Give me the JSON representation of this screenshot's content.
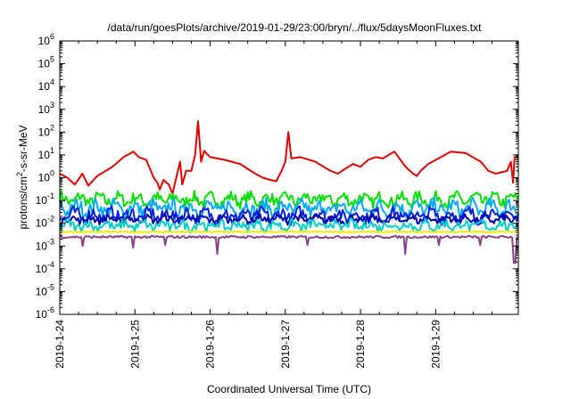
{
  "chart_data": {
    "type": "line",
    "title": "/data/run/goesPlots/archive/2019-01-29/23:00/bryn/../flux/5daysMoonFluxes.txt",
    "xlabel": "Coordinated Universal Time (UTC)",
    "ylabel": {
      "pre": "protons/cm",
      "sup": "2",
      "post": "-s-sr-MeV"
    },
    "yscale": "log",
    "ylim_exp": [
      -6,
      6
    ],
    "xlim_days": [
      0,
      6.1
    ],
    "y_ticks": [
      {
        "base": "10",
        "exp": "-6",
        "e": -6
      },
      {
        "base": "10",
        "exp": "-5",
        "e": -5
      },
      {
        "base": "10",
        "exp": "-4",
        "e": -4
      },
      {
        "base": "10",
        "exp": "-3",
        "e": -3
      },
      {
        "base": "10",
        "exp": "-2",
        "e": -2
      },
      {
        "base": "10",
        "exp": "-1",
        "e": -1
      },
      {
        "base": "10",
        "exp": "0",
        "e": 0
      },
      {
        "base": "10",
        "exp": "1",
        "e": 1
      },
      {
        "base": "10",
        "exp": "2",
        "e": 2
      },
      {
        "base": "10",
        "exp": "3",
        "e": 3
      },
      {
        "base": "10",
        "exp": "4",
        "e": 4
      },
      {
        "base": "10",
        "exp": "5",
        "e": 5
      },
      {
        "base": "10",
        "exp": "6",
        "e": 6
      }
    ],
    "x_ticks": [
      {
        "label": "2019-1-24",
        "day": 0
      },
      {
        "label": "2019-1-25",
        "day": 1
      },
      {
        "label": "2019-1-26",
        "day": 2
      },
      {
        "label": "2019-1-27",
        "day": 3
      },
      {
        "label": "2019-1-28",
        "day": 4
      },
      {
        "label": "2019-1-29",
        "day": 5
      }
    ],
    "grid": false,
    "legend": "none",
    "series": [
      {
        "color": "#dd0000",
        "points": [
          [
            0,
            1.5
          ],
          [
            0.1,
            1.0
          ],
          [
            0.2,
            0.5
          ],
          [
            0.3,
            1.5
          ],
          [
            0.38,
            0.45
          ],
          [
            0.5,
            1.2
          ],
          [
            0.7,
            3
          ],
          [
            0.85,
            8
          ],
          [
            0.98,
            14
          ],
          [
            1.05,
            8
          ],
          [
            1.15,
            6
          ],
          [
            1.25,
            1
          ],
          [
            1.3,
            0.6
          ],
          [
            1.33,
            0.3
          ],
          [
            1.38,
            0.8
          ],
          [
            1.45,
            0.5
          ],
          [
            1.5,
            0.2
          ],
          [
            1.55,
            1.0
          ],
          [
            1.6,
            5
          ],
          [
            1.63,
            0.5
          ],
          [
            1.68,
            2
          ],
          [
            1.75,
            2
          ],
          [
            1.8,
            10
          ],
          [
            1.84,
            300
          ],
          [
            1.88,
            5
          ],
          [
            1.92,
            15
          ],
          [
            2.0,
            8
          ],
          [
            2.2,
            6
          ],
          [
            2.4,
            4
          ],
          [
            2.6,
            1.5
          ],
          [
            2.7,
            1.0
          ],
          [
            2.8,
            0.8
          ],
          [
            2.88,
            0.7
          ],
          [
            2.95,
            2
          ],
          [
            3.0,
            5
          ],
          [
            3.04,
            100
          ],
          [
            3.08,
            7
          ],
          [
            3.2,
            8
          ],
          [
            3.4,
            5
          ],
          [
            3.6,
            2
          ],
          [
            3.7,
            1.5
          ],
          [
            3.8,
            2.5
          ],
          [
            3.9,
            4
          ],
          [
            4.0,
            3
          ],
          [
            4.1,
            6
          ],
          [
            4.2,
            8
          ],
          [
            4.3,
            7
          ],
          [
            4.45,
            14
          ],
          [
            4.55,
            5
          ],
          [
            4.6,
            3
          ],
          [
            4.7,
            1.5
          ],
          [
            4.75,
            1.2
          ],
          [
            4.8,
            2
          ],
          [
            4.9,
            4
          ],
          [
            5.0,
            6
          ],
          [
            5.2,
            14
          ],
          [
            5.4,
            12
          ],
          [
            5.6,
            5
          ],
          [
            5.7,
            2
          ],
          [
            5.8,
            1.5
          ],
          [
            5.95,
            2
          ],
          [
            6.0,
            5
          ],
          [
            6.03,
            0.6
          ],
          [
            6.05,
            8
          ],
          [
            6.1,
            9
          ]
        ]
      },
      {
        "color": "#00dd00",
        "base": 0.11,
        "amp": 0.5,
        "mode": "fluct"
      },
      {
        "color": "#00aaff",
        "base": 0.045,
        "amp": 0.6,
        "mode": "fluct"
      },
      {
        "color": "#0022dd",
        "base": 0.022,
        "amp": 0.55,
        "mode": "fluct"
      },
      {
        "color": "#0000aa",
        "base": 0.015,
        "amp": 0.3,
        "mode": "fluct"
      },
      {
        "color": "#00cccc",
        "base": 0.008,
        "amp": 0.4,
        "mode": "fluct"
      },
      {
        "color": "#eeee00",
        "base": 0.0042,
        "amp": 0.06,
        "mode": "flat"
      },
      {
        "color": "#884488",
        "base": 0.0025,
        "amp": 0.1,
        "mode": "dips",
        "dips": [
          [
            0.3,
            0.001
          ],
          [
            0.98,
            0.00085
          ],
          [
            1.4,
            0.0011
          ],
          [
            2.1,
            0.00045
          ],
          [
            3.3,
            0.0011
          ],
          [
            4.6,
            0.00045
          ],
          [
            5.05,
            0.0011
          ],
          [
            5.6,
            0.0011
          ],
          [
            6.05,
            0.00018
          ]
        ]
      }
    ]
  }
}
